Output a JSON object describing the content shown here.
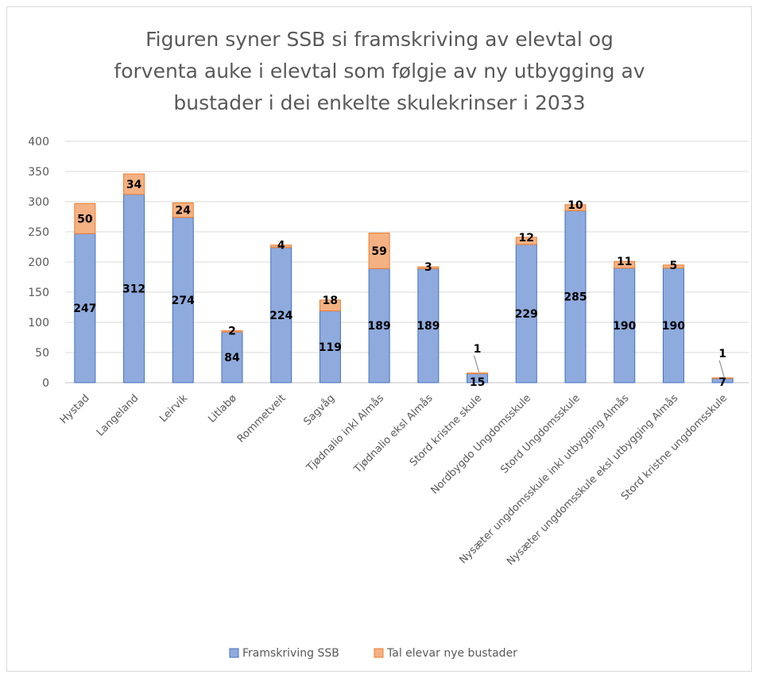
{
  "chart_data": {
    "type": "bar",
    "stacked": true,
    "title_lines": [
      "Figuren syner SSB si framskriving av elevtal og",
      "forventa auke i elevtal som følgje av ny utbygging av",
      "bustader i dei enkelte skulekrinser i 2033"
    ],
    "categories": [
      "Hystad",
      "Langeland",
      "Leirvik",
      "Litlabø",
      "Rommetveit",
      "Sagvåg",
      "Tjødnalio inkl Almås",
      "Tjødnalio eksl Almås",
      "Stord kristne skule",
      "Nordbygdo Ungdomsskule",
      "Stord Ungdomsskule",
      "Nysæter ungdomsskule inkl utbygging Almås",
      "Nysæter ungdomsskule eksl utbygging Almås",
      "Stord kristne ungdomsskule"
    ],
    "series": [
      {
        "name": "Framskriving SSB",
        "color": "#8faadc",
        "border": "#4472c4",
        "values": [
          247,
          312,
          274,
          84,
          224,
          119,
          189,
          189,
          15,
          229,
          285,
          190,
          190,
          7
        ]
      },
      {
        "name": "Tal elevar nye bustader",
        "color": "#f4b183",
        "border": "#ed7d31",
        "values": [
          50,
          34,
          24,
          2,
          4,
          18,
          59,
          3,
          1,
          12,
          10,
          11,
          5,
          1
        ]
      }
    ],
    "ylim": [
      0,
      400
    ],
    "yticks": [
      0,
      50,
      100,
      150,
      200,
      250,
      300,
      350,
      400
    ],
    "grid": true,
    "legend_position": "bottom"
  }
}
